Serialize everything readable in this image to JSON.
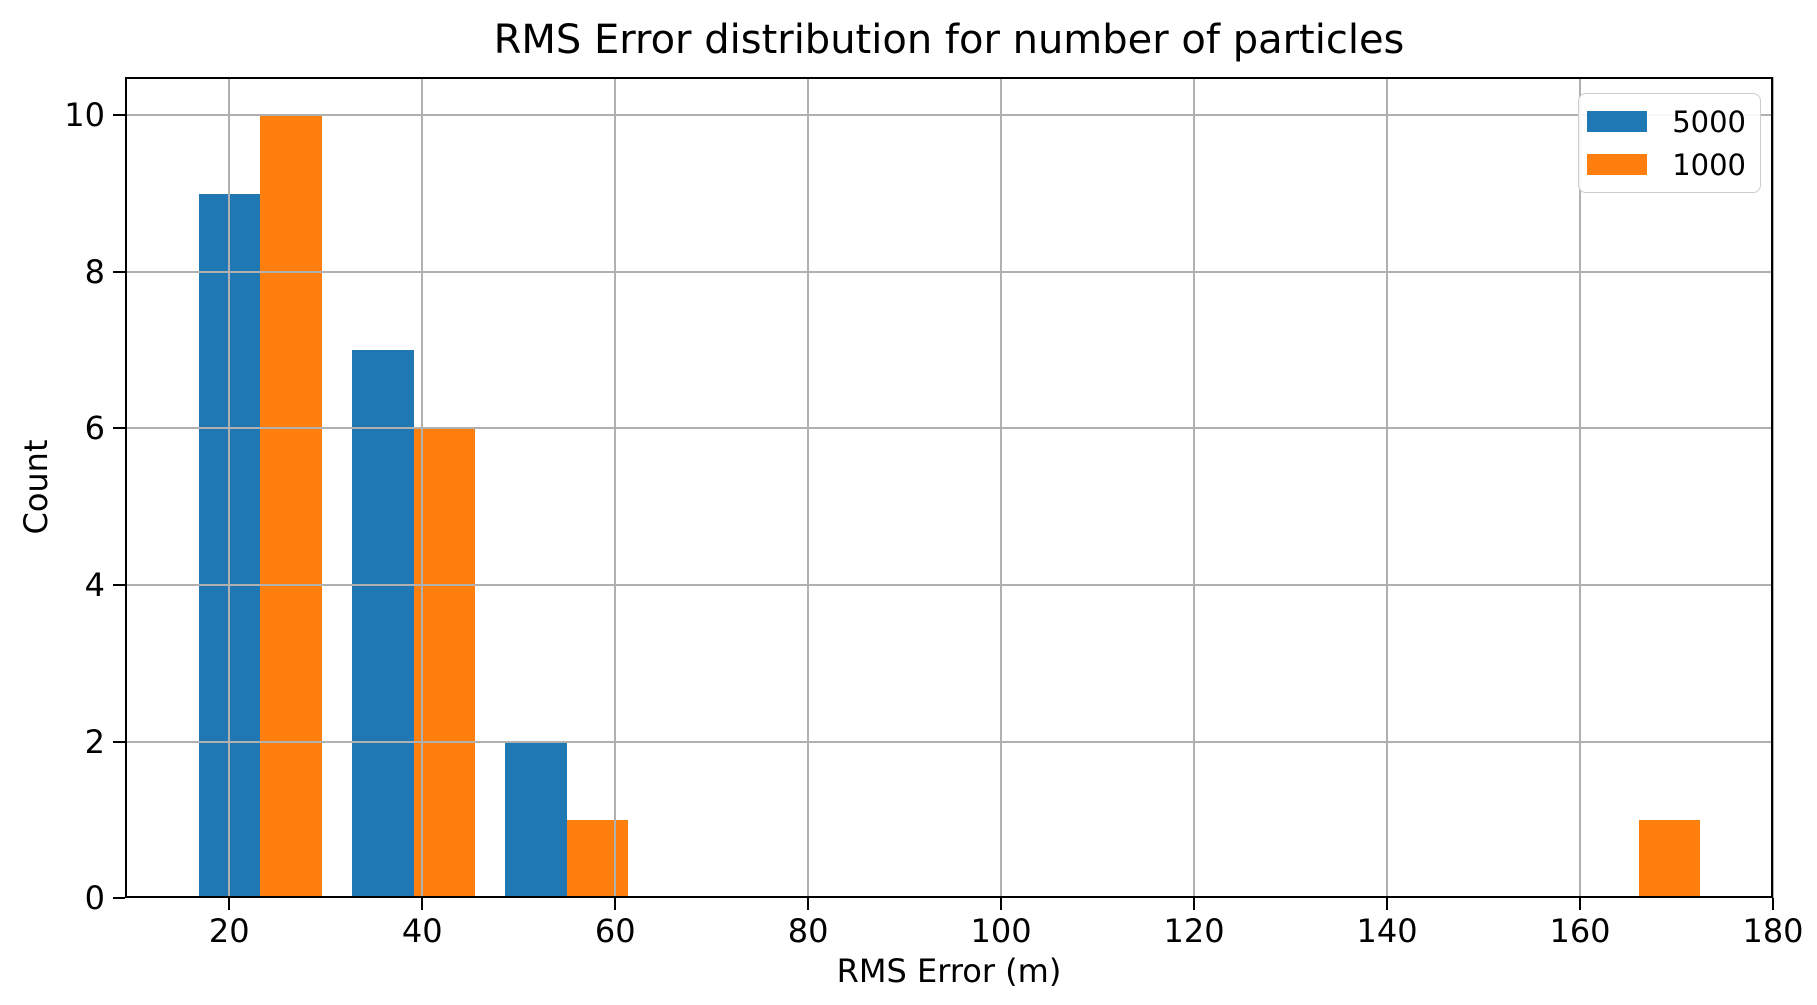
{
  "chart_data": {
    "type": "bar",
    "subtype": "histogram-grouped",
    "title": "RMS Error distribution for number of particles",
    "xlabel": "RMS Error (m)",
    "ylabel": "Count",
    "xlim": [
      9.2,
      180
    ],
    "ylim": [
      0,
      10.49
    ],
    "x_ticks": [
      20,
      40,
      60,
      80,
      100,
      120,
      140,
      160,
      180
    ],
    "y_ticks": [
      0,
      2,
      4,
      6,
      8,
      10
    ],
    "grid": true,
    "grid_color": "#b0b0b0",
    "axis_color": "#000000",
    "background_color": "#ffffff",
    "legend_position": "upper right",
    "bar_group_rwidth": 0.8,
    "bin_edges": [
      15.3,
      31.17,
      47.04,
      62.91,
      78.78,
      94.65,
      110.52,
      126.39,
      142.26,
      158.13,
      174.0
    ],
    "series": [
      {
        "name": "5000",
        "color": "#1f77b4",
        "counts": [
          9,
          7,
          2,
          0,
          0,
          0,
          0,
          0,
          0,
          0
        ]
      },
      {
        "name": "1000",
        "color": "#ff7f0e",
        "counts": [
          10,
          6,
          1,
          0,
          0,
          0,
          0,
          0,
          0,
          1
        ]
      }
    ]
  }
}
